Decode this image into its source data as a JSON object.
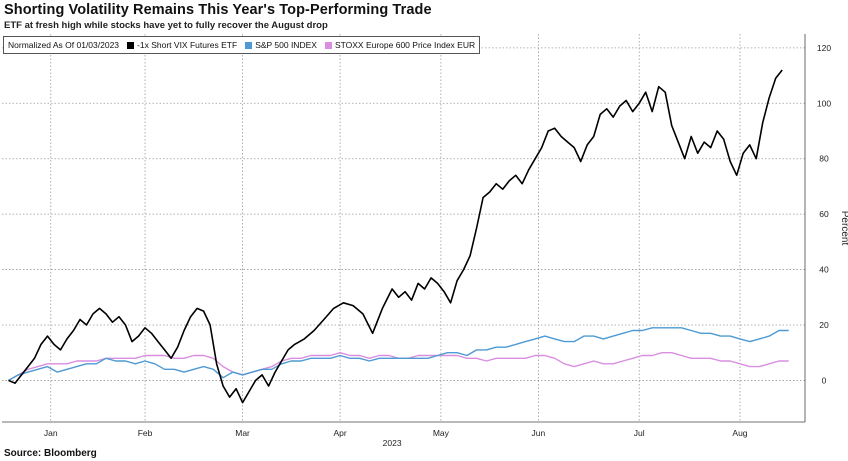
{
  "chart_data": {
    "type": "line",
    "title": "Shorting Volatility Remains This Year's Top-Performing Trade",
    "subtitle": "ETF at fresh high while stocks have yet to fully recover the August drop",
    "source": "Source: Bloomberg",
    "legend_note": "Normalized As Of 01/03/2023",
    "ylabel": "Percent",
    "xlabel": "2023",
    "ylim": [
      -15,
      125
    ],
    "yticks": [
      0,
      20,
      40,
      60,
      80,
      100,
      120
    ],
    "x_range": [
      "2023-01-01",
      "2023-09-05"
    ],
    "x_ticks": [
      {
        "label": "Jan",
        "date": "2023-01-16"
      },
      {
        "label": "Feb",
        "date": "2023-02-14"
      },
      {
        "label": "Mar",
        "date": "2023-03-16"
      },
      {
        "label": "Apr",
        "date": "2023-04-15"
      },
      {
        "label": "May",
        "date": "2023-05-16"
      },
      {
        "label": "Jun",
        "date": "2023-06-15"
      },
      {
        "label": "Jul",
        "date": "2023-07-16"
      },
      {
        "label": "Aug",
        "date": "2023-08-16"
      }
    ],
    "grid": true,
    "legend_position": "top-left",
    "series": [
      {
        "name": "-1x Short VIX Futures ETF",
        "color": "#000000",
        "points": [
          [
            "2023-01-03",
            0
          ],
          [
            "2023-01-05",
            -1
          ],
          [
            "2023-01-07",
            2
          ],
          [
            "2023-01-09",
            5
          ],
          [
            "2023-01-11",
            8
          ],
          [
            "2023-01-13",
            13
          ],
          [
            "2023-01-15",
            16
          ],
          [
            "2023-01-17",
            13
          ],
          [
            "2023-01-19",
            11
          ],
          [
            "2023-01-21",
            15
          ],
          [
            "2023-01-23",
            18
          ],
          [
            "2023-01-25",
            22
          ],
          [
            "2023-01-27",
            20
          ],
          [
            "2023-01-29",
            24
          ],
          [
            "2023-01-31",
            26
          ],
          [
            "2023-02-02",
            24
          ],
          [
            "2023-02-04",
            21
          ],
          [
            "2023-02-06",
            23
          ],
          [
            "2023-02-08",
            20
          ],
          [
            "2023-02-10",
            14
          ],
          [
            "2023-02-12",
            16
          ],
          [
            "2023-02-14",
            19
          ],
          [
            "2023-02-16",
            17
          ],
          [
            "2023-02-18",
            14
          ],
          [
            "2023-02-20",
            11
          ],
          [
            "2023-02-22",
            8
          ],
          [
            "2023-02-24",
            12
          ],
          [
            "2023-02-26",
            18
          ],
          [
            "2023-02-28",
            23
          ],
          [
            "2023-03-02",
            26
          ],
          [
            "2023-03-04",
            25
          ],
          [
            "2023-03-06",
            20
          ],
          [
            "2023-03-08",
            6
          ],
          [
            "2023-03-10",
            -2
          ],
          [
            "2023-03-12",
            -6
          ],
          [
            "2023-03-14",
            -3
          ],
          [
            "2023-03-16",
            -8
          ],
          [
            "2023-03-18",
            -4
          ],
          [
            "2023-03-20",
            0
          ],
          [
            "2023-03-22",
            2
          ],
          [
            "2023-03-24",
            -2
          ],
          [
            "2023-03-26",
            3
          ],
          [
            "2023-03-28",
            7
          ],
          [
            "2023-03-30",
            11
          ],
          [
            "2023-04-01",
            13
          ],
          [
            "2023-04-04",
            15
          ],
          [
            "2023-04-07",
            18
          ],
          [
            "2023-04-10",
            22
          ],
          [
            "2023-04-13",
            26
          ],
          [
            "2023-04-16",
            28
          ],
          [
            "2023-04-19",
            27
          ],
          [
            "2023-04-22",
            24
          ],
          [
            "2023-04-25",
            17
          ],
          [
            "2023-04-28",
            26
          ],
          [
            "2023-05-01",
            33
          ],
          [
            "2023-05-03",
            30
          ],
          [
            "2023-05-05",
            32
          ],
          [
            "2023-05-07",
            29
          ],
          [
            "2023-05-09",
            35
          ],
          [
            "2023-05-11",
            33
          ],
          [
            "2023-05-13",
            37
          ],
          [
            "2023-05-15",
            35
          ],
          [
            "2023-05-17",
            32
          ],
          [
            "2023-05-19",
            28
          ],
          [
            "2023-05-21",
            36
          ],
          [
            "2023-05-23",
            40
          ],
          [
            "2023-05-25",
            45
          ],
          [
            "2023-05-27",
            55
          ],
          [
            "2023-05-29",
            66
          ],
          [
            "2023-05-31",
            68
          ],
          [
            "2023-06-02",
            71
          ],
          [
            "2023-06-04",
            69
          ],
          [
            "2023-06-06",
            72
          ],
          [
            "2023-06-08",
            74
          ],
          [
            "2023-06-10",
            71
          ],
          [
            "2023-06-12",
            76
          ],
          [
            "2023-06-14",
            80
          ],
          [
            "2023-06-16",
            84
          ],
          [
            "2023-06-18",
            90
          ],
          [
            "2023-06-20",
            91
          ],
          [
            "2023-06-22",
            88
          ],
          [
            "2023-06-24",
            86
          ],
          [
            "2023-06-26",
            84
          ],
          [
            "2023-06-28",
            79
          ],
          [
            "2023-06-30",
            85
          ],
          [
            "2023-07-02",
            88
          ],
          [
            "2023-07-04",
            96
          ],
          [
            "2023-07-06",
            98
          ],
          [
            "2023-07-08",
            95
          ],
          [
            "2023-07-10",
            99
          ],
          [
            "2023-07-12",
            101
          ],
          [
            "2023-07-14",
            97
          ],
          [
            "2023-07-16",
            100
          ],
          [
            "2023-07-18",
            104
          ],
          [
            "2023-07-20",
            97
          ],
          [
            "2023-07-22",
            106
          ],
          [
            "2023-07-24",
            104
          ],
          [
            "2023-07-26",
            92
          ],
          [
            "2023-07-28",
            86
          ],
          [
            "2023-07-30",
            80
          ],
          [
            "2023-08-01",
            88
          ],
          [
            "2023-08-03",
            82
          ],
          [
            "2023-08-05",
            86
          ],
          [
            "2023-08-07",
            84
          ],
          [
            "2023-08-09",
            90
          ],
          [
            "2023-08-11",
            87
          ],
          [
            "2023-08-13",
            79
          ],
          [
            "2023-08-15",
            74
          ],
          [
            "2023-08-17",
            82
          ],
          [
            "2023-08-19",
            85
          ],
          [
            "2023-08-21",
            80
          ],
          [
            "2023-08-23",
            93
          ],
          [
            "2023-08-25",
            102
          ],
          [
            "2023-08-27",
            109
          ],
          [
            "2023-08-29",
            112
          ]
        ]
      },
      {
        "name": "S&P 500 INDEX",
        "color": "#4d9ad4",
        "points": [
          [
            "2023-01-03",
            0
          ],
          [
            "2023-01-06",
            2
          ],
          [
            "2023-01-09",
            3
          ],
          [
            "2023-01-12",
            4
          ],
          [
            "2023-01-15",
            5
          ],
          [
            "2023-01-18",
            3
          ],
          [
            "2023-01-21",
            4
          ],
          [
            "2023-01-24",
            5
          ],
          [
            "2023-01-27",
            6
          ],
          [
            "2023-01-30",
            6
          ],
          [
            "2023-02-02",
            8
          ],
          [
            "2023-02-05",
            7
          ],
          [
            "2023-02-08",
            7
          ],
          [
            "2023-02-11",
            6
          ],
          [
            "2023-02-14",
            7
          ],
          [
            "2023-02-17",
            6
          ],
          [
            "2023-02-20",
            4
          ],
          [
            "2023-02-23",
            4
          ],
          [
            "2023-02-26",
            3
          ],
          [
            "2023-03-01",
            4
          ],
          [
            "2023-03-04",
            5
          ],
          [
            "2023-03-07",
            4
          ],
          [
            "2023-03-10",
            1
          ],
          [
            "2023-03-13",
            3
          ],
          [
            "2023-03-16",
            2
          ],
          [
            "2023-03-19",
            3
          ],
          [
            "2023-03-22",
            4
          ],
          [
            "2023-03-25",
            4
          ],
          [
            "2023-03-28",
            6
          ],
          [
            "2023-03-31",
            7
          ],
          [
            "2023-04-03",
            7
          ],
          [
            "2023-04-06",
            8
          ],
          [
            "2023-04-09",
            8
          ],
          [
            "2023-04-12",
            8
          ],
          [
            "2023-04-15",
            9
          ],
          [
            "2023-04-18",
            8
          ],
          [
            "2023-04-21",
            8
          ],
          [
            "2023-04-24",
            7
          ],
          [
            "2023-04-27",
            8
          ],
          [
            "2023-04-30",
            8
          ],
          [
            "2023-05-03",
            8
          ],
          [
            "2023-05-06",
            8
          ],
          [
            "2023-05-09",
            8
          ],
          [
            "2023-05-12",
            8
          ],
          [
            "2023-05-15",
            9
          ],
          [
            "2023-05-18",
            10
          ],
          [
            "2023-05-21",
            10
          ],
          [
            "2023-05-24",
            9
          ],
          [
            "2023-05-27",
            11
          ],
          [
            "2023-05-30",
            11
          ],
          [
            "2023-06-02",
            12
          ],
          [
            "2023-06-05",
            12
          ],
          [
            "2023-06-08",
            13
          ],
          [
            "2023-06-11",
            14
          ],
          [
            "2023-06-14",
            15
          ],
          [
            "2023-06-17",
            16
          ],
          [
            "2023-06-20",
            15
          ],
          [
            "2023-06-23",
            14
          ],
          [
            "2023-06-26",
            14
          ],
          [
            "2023-06-29",
            16
          ],
          [
            "2023-07-02",
            16
          ],
          [
            "2023-07-05",
            15
          ],
          [
            "2023-07-08",
            16
          ],
          [
            "2023-07-11",
            17
          ],
          [
            "2023-07-14",
            18
          ],
          [
            "2023-07-17",
            18
          ],
          [
            "2023-07-20",
            19
          ],
          [
            "2023-07-23",
            19
          ],
          [
            "2023-07-26",
            19
          ],
          [
            "2023-07-29",
            19
          ],
          [
            "2023-08-01",
            18
          ],
          [
            "2023-08-04",
            17
          ],
          [
            "2023-08-07",
            17
          ],
          [
            "2023-08-10",
            16
          ],
          [
            "2023-08-13",
            16
          ],
          [
            "2023-08-16",
            15
          ],
          [
            "2023-08-19",
            14
          ],
          [
            "2023-08-22",
            15
          ],
          [
            "2023-08-25",
            16
          ],
          [
            "2023-08-28",
            18
          ],
          [
            "2023-08-31",
            18
          ]
        ]
      },
      {
        "name": "STOXX Europe 600 Price Index EUR",
        "color": "#d98ee0",
        "points": [
          [
            "2023-01-03",
            0
          ],
          [
            "2023-01-06",
            2
          ],
          [
            "2023-01-09",
            4
          ],
          [
            "2023-01-12",
            5
          ],
          [
            "2023-01-15",
            6
          ],
          [
            "2023-01-18",
            6
          ],
          [
            "2023-01-21",
            6
          ],
          [
            "2023-01-24",
            7
          ],
          [
            "2023-01-27",
            7
          ],
          [
            "2023-01-30",
            7
          ],
          [
            "2023-02-02",
            8
          ],
          [
            "2023-02-05",
            8
          ],
          [
            "2023-02-08",
            8
          ],
          [
            "2023-02-11",
            8
          ],
          [
            "2023-02-14",
            9
          ],
          [
            "2023-02-17",
            9
          ],
          [
            "2023-02-20",
            9
          ],
          [
            "2023-02-23",
            8
          ],
          [
            "2023-02-26",
            8
          ],
          [
            "2023-03-01",
            9
          ],
          [
            "2023-03-04",
            9
          ],
          [
            "2023-03-07",
            8
          ],
          [
            "2023-03-10",
            5
          ],
          [
            "2023-03-13",
            3
          ],
          [
            "2023-03-16",
            2
          ],
          [
            "2023-03-19",
            3
          ],
          [
            "2023-03-22",
            4
          ],
          [
            "2023-03-25",
            5
          ],
          [
            "2023-03-28",
            7
          ],
          [
            "2023-03-31",
            8
          ],
          [
            "2023-04-03",
            8
          ],
          [
            "2023-04-06",
            9
          ],
          [
            "2023-04-09",
            9
          ],
          [
            "2023-04-12",
            9
          ],
          [
            "2023-04-15",
            10
          ],
          [
            "2023-04-18",
            9
          ],
          [
            "2023-04-21",
            9
          ],
          [
            "2023-04-24",
            8
          ],
          [
            "2023-04-27",
            9
          ],
          [
            "2023-04-30",
            9
          ],
          [
            "2023-05-03",
            8
          ],
          [
            "2023-05-06",
            8
          ],
          [
            "2023-05-09",
            9
          ],
          [
            "2023-05-12",
            9
          ],
          [
            "2023-05-15",
            9
          ],
          [
            "2023-05-18",
            9
          ],
          [
            "2023-05-21",
            9
          ],
          [
            "2023-05-24",
            8
          ],
          [
            "2023-05-27",
            8
          ],
          [
            "2023-05-30",
            7
          ],
          [
            "2023-06-02",
            8
          ],
          [
            "2023-06-05",
            8
          ],
          [
            "2023-06-08",
            8
          ],
          [
            "2023-06-11",
            8
          ],
          [
            "2023-06-14",
            9
          ],
          [
            "2023-06-17",
            9
          ],
          [
            "2023-06-20",
            8
          ],
          [
            "2023-06-23",
            6
          ],
          [
            "2023-06-26",
            5
          ],
          [
            "2023-06-29",
            6
          ],
          [
            "2023-07-02",
            7
          ],
          [
            "2023-07-05",
            6
          ],
          [
            "2023-07-08",
            6
          ],
          [
            "2023-07-11",
            7
          ],
          [
            "2023-07-14",
            8
          ],
          [
            "2023-07-17",
            9
          ],
          [
            "2023-07-20",
            9
          ],
          [
            "2023-07-23",
            10
          ],
          [
            "2023-07-26",
            10
          ],
          [
            "2023-07-29",
            9
          ],
          [
            "2023-08-01",
            8
          ],
          [
            "2023-08-04",
            8
          ],
          [
            "2023-08-07",
            8
          ],
          [
            "2023-08-10",
            7
          ],
          [
            "2023-08-13",
            7
          ],
          [
            "2023-08-16",
            6
          ],
          [
            "2023-08-19",
            5
          ],
          [
            "2023-08-22",
            5
          ],
          [
            "2023-08-25",
            6
          ],
          [
            "2023-08-28",
            7
          ],
          [
            "2023-08-31",
            7
          ]
        ]
      }
    ]
  }
}
